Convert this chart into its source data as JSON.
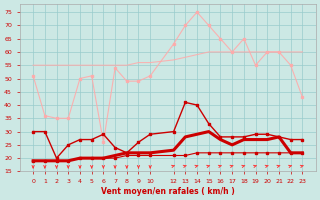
{
  "xlabel": "Vent moyen/en rafales ( km/h )",
  "background_color": "#cce8e4",
  "grid_color": "#99cccc",
  "hours": [
    0,
    1,
    2,
    3,
    4,
    5,
    6,
    7,
    8,
    9,
    10,
    12,
    13,
    14,
    15,
    16,
    17,
    18,
    19,
    20,
    21,
    22,
    23
  ],
  "color_light_pink": "#ffaaaa",
  "color_dark_red": "#cc0000",
  "color_medium_red": "#ff3333",
  "ylim": [
    15,
    78
  ],
  "yticks": [
    15,
    20,
    25,
    30,
    35,
    40,
    45,
    50,
    55,
    60,
    65,
    70,
    75
  ],
  "rafales_upper": [
    51,
    36,
    35,
    35,
    50,
    51,
    26,
    54,
    49,
    49,
    51,
    63,
    70,
    75,
    70,
    65,
    60,
    65,
    55,
    60,
    60,
    55,
    43
  ],
  "flat_upper": [
    55,
    55,
    55,
    55,
    55,
    55,
    55,
    55,
    55,
    56,
    56,
    57,
    58,
    59,
    60,
    60,
    60,
    60,
    60,
    60,
    60,
    60,
    60
  ],
  "wind_max": [
    30,
    30,
    20,
    25,
    27,
    27,
    29,
    24,
    22,
    26,
    29,
    30,
    41,
    40,
    33,
    28,
    28,
    28,
    29,
    29,
    28,
    27,
    27
  ],
  "wind_avg": [
    19,
    19,
    19,
    19,
    20,
    20,
    20,
    21,
    22,
    22,
    22,
    23,
    28,
    29,
    30,
    27,
    25,
    27,
    27,
    27,
    28,
    22,
    22
  ],
  "wind_low": [
    19,
    19,
    19,
    19,
    20,
    20,
    20,
    20,
    21,
    21,
    21,
    21,
    21,
    22,
    22,
    22,
    22,
    22,
    22,
    22,
    22,
    22,
    22
  ],
  "xtick_labels": [
    "0",
    "1",
    "2",
    "3",
    "4",
    "5",
    "6",
    "7",
    "8",
    "9",
    "10",
    "12",
    "13",
    "14",
    "15",
    "16",
    "17",
    "18",
    "19",
    "20",
    "21",
    "22",
    "23"
  ]
}
